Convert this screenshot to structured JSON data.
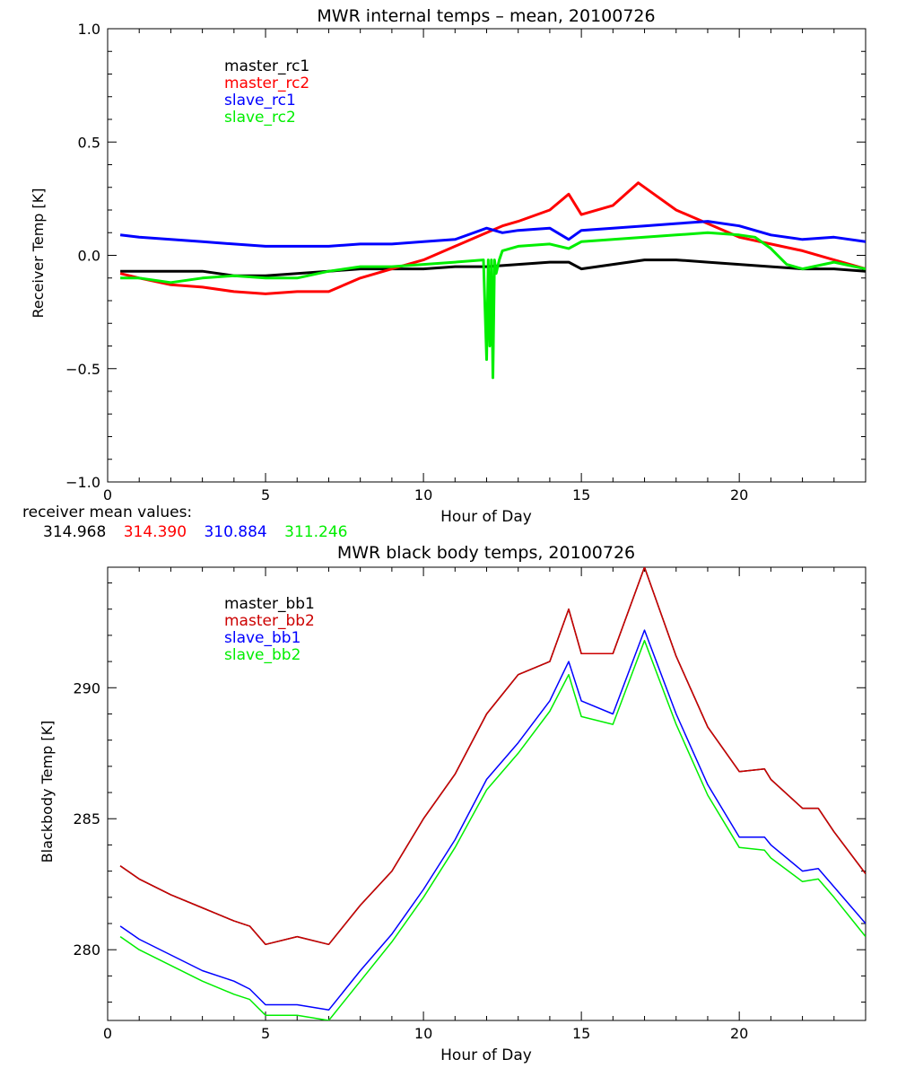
{
  "chart_data": [
    {
      "type": "line",
      "title": "MWR internal temps – mean, 20100726",
      "xlabel": "Hour of Day",
      "ylabel": "Receiver Temp [K]",
      "xlim": [
        0,
        24
      ],
      "ylim": [
        -1.0,
        1.0
      ],
      "xticks": [
        0,
        5,
        10,
        15,
        20
      ],
      "yticks": [
        -1.0,
        -0.5,
        0.0,
        0.5,
        1.0
      ],
      "ytick_labels": [
        "−1.0",
        "−0.5",
        "0.0",
        "0.5",
        "1.0"
      ],
      "grid": false,
      "legend_position": "top-left",
      "series": [
        {
          "name": "master_rc1",
          "color": "#000000",
          "x": [
            0.4,
            1,
            2,
            3,
            4,
            5,
            6,
            7,
            8,
            9,
            10,
            11,
            12,
            13,
            14,
            14.6,
            15,
            16,
            17,
            18,
            19,
            20,
            21,
            22,
            23,
            24
          ],
          "y": [
            -0.07,
            -0.07,
            -0.07,
            -0.07,
            -0.09,
            -0.09,
            -0.08,
            -0.07,
            -0.06,
            -0.06,
            -0.06,
            -0.05,
            -0.05,
            -0.04,
            -0.03,
            -0.03,
            -0.06,
            -0.04,
            -0.02,
            -0.02,
            -0.03,
            -0.04,
            -0.05,
            -0.06,
            -0.06,
            -0.07
          ]
        },
        {
          "name": "master_rc2",
          "color": "#ff0000",
          "x": [
            0.4,
            1,
            2,
            3,
            4,
            5,
            6,
            7,
            8,
            9,
            10,
            11,
            12,
            12.5,
            13,
            14,
            14.6,
            15,
            16,
            16.8,
            17.2,
            18,
            19,
            20,
            21,
            22,
            23,
            24
          ],
          "y": [
            -0.08,
            -0.1,
            -0.13,
            -0.14,
            -0.16,
            -0.17,
            -0.16,
            -0.16,
            -0.1,
            -0.06,
            -0.02,
            0.04,
            0.1,
            0.13,
            0.15,
            0.2,
            0.27,
            0.18,
            0.22,
            0.32,
            0.28,
            0.2,
            0.14,
            0.08,
            0.05,
            0.02,
            -0.02,
            -0.06
          ]
        },
        {
          "name": "slave_rc1",
          "color": "#0000ff",
          "x": [
            0.4,
            1,
            2,
            3,
            4,
            5,
            6,
            7,
            8,
            9,
            10,
            11,
            12,
            12.5,
            13,
            14,
            14.6,
            15,
            16,
            17,
            18,
            19,
            20,
            21,
            22,
            23,
            24
          ],
          "y": [
            0.09,
            0.08,
            0.07,
            0.06,
            0.05,
            0.04,
            0.04,
            0.04,
            0.05,
            0.05,
            0.06,
            0.07,
            0.12,
            0.1,
            0.11,
            0.12,
            0.07,
            0.11,
            0.12,
            0.13,
            0.14,
            0.15,
            0.13,
            0.09,
            0.07,
            0.08,
            0.06
          ]
        },
        {
          "name": "slave_rc2",
          "color": "#00ee00",
          "x": [
            0.4,
            1,
            2,
            3,
            4,
            5,
            6,
            7,
            8,
            9,
            10,
            11,
            11.9,
            12.0,
            12.05,
            12.1,
            12.15,
            12.2,
            12.25,
            12.3,
            12.4,
            12.5,
            13,
            14,
            14.6,
            15,
            16,
            17,
            18,
            19,
            20,
            20.5,
            21,
            21.5,
            22,
            23,
            24
          ],
          "y": [
            -0.1,
            -0.1,
            -0.12,
            -0.1,
            -0.09,
            -0.1,
            -0.1,
            -0.07,
            -0.05,
            -0.05,
            -0.04,
            -0.03,
            -0.02,
            -0.46,
            -0.02,
            -0.4,
            -0.02,
            -0.54,
            -0.02,
            -0.08,
            -0.02,
            0.02,
            0.04,
            0.05,
            0.03,
            0.06,
            0.07,
            0.08,
            0.09,
            0.1,
            0.09,
            0.08,
            0.03,
            -0.04,
            -0.06,
            -0.03,
            -0.06
          ]
        }
      ],
      "mean_values_caption": "receiver mean values:",
      "mean_values": [
        {
          "text": "314.968",
          "color": "#000000"
        },
        {
          "text": "314.390",
          "color": "#ff0000"
        },
        {
          "text": "310.884",
          "color": "#0000ff"
        },
        {
          "text": "311.246",
          "color": "#00ee00"
        }
      ]
    },
    {
      "type": "line",
      "title": "MWR black body temps, 20100726",
      "xlabel": "Hour of Day",
      "ylabel": "Blackbody Temp [K]",
      "xlim": [
        0,
        24
      ],
      "ylim": [
        277.3,
        294.6
      ],
      "xticks": [
        0,
        5,
        10,
        15,
        20
      ],
      "yticks": [
        280,
        285,
        290
      ],
      "grid": false,
      "legend_position": "top-left",
      "series": [
        {
          "name": "master_bb1",
          "color": "#000000",
          "x": [
            0.4,
            1,
            2,
            3,
            4,
            4.5,
            5,
            6,
            7,
            8,
            9,
            10,
            11,
            12,
            13,
            14,
            14.6,
            15,
            16,
            17,
            18,
            19,
            20,
            20.8,
            21,
            22,
            22.5,
            23,
            24
          ],
          "y": [
            283.2,
            282.7,
            282.1,
            281.6,
            281.1,
            280.9,
            280.2,
            280.5,
            280.2,
            281.7,
            283.0,
            285.0,
            286.7,
            289.0,
            290.5,
            291.0,
            293.0,
            291.3,
            291.3,
            294.6,
            291.2,
            288.5,
            286.8,
            286.9,
            286.5,
            285.4,
            285.4,
            284.5,
            282.9
          ]
        },
        {
          "name": "master_bb2",
          "color": "#cc0000",
          "x": [
            0.4,
            1,
            2,
            3,
            4,
            4.5,
            5,
            6,
            7,
            8,
            9,
            10,
            11,
            12,
            13,
            14,
            14.6,
            15,
            16,
            17,
            18,
            19,
            20,
            20.8,
            21,
            22,
            22.5,
            23,
            24
          ],
          "y": [
            283.2,
            282.7,
            282.1,
            281.6,
            281.1,
            280.9,
            280.2,
            280.5,
            280.2,
            281.7,
            283.0,
            285.0,
            286.7,
            289.0,
            290.5,
            291.0,
            293.0,
            291.3,
            291.3,
            294.6,
            291.2,
            288.5,
            286.8,
            286.9,
            286.5,
            285.4,
            285.4,
            284.5,
            282.9
          ]
        },
        {
          "name": "slave_bb1",
          "color": "#0000ff",
          "x": [
            0.4,
            1,
            2,
            3,
            4,
            4.5,
            5,
            6,
            7,
            8,
            9,
            10,
            11,
            12,
            13,
            14,
            14.6,
            15,
            16,
            17,
            18,
            19,
            20,
            20.8,
            21,
            22,
            22.5,
            23,
            24
          ],
          "y": [
            280.9,
            280.4,
            279.8,
            279.2,
            278.8,
            278.5,
            277.9,
            277.9,
            277.7,
            279.2,
            280.6,
            282.3,
            284.2,
            286.5,
            287.9,
            289.5,
            291.0,
            289.5,
            289.0,
            292.2,
            289.0,
            286.3,
            284.3,
            284.3,
            284.0,
            283.0,
            283.1,
            282.4,
            281.0
          ]
        },
        {
          "name": "slave_bb2",
          "color": "#00ee00",
          "x": [
            0.4,
            1,
            2,
            3,
            4,
            4.5,
            5,
            6,
            7,
            8,
            9,
            10,
            11,
            12,
            13,
            14,
            14.6,
            15,
            16,
            17,
            18,
            19,
            20,
            20.8,
            21,
            22,
            22.5,
            23,
            24
          ],
          "y": [
            280.5,
            280.0,
            279.4,
            278.8,
            278.3,
            278.1,
            277.5,
            277.5,
            277.3,
            278.8,
            280.3,
            282.0,
            283.9,
            286.1,
            287.5,
            289.1,
            290.5,
            288.9,
            288.6,
            291.8,
            288.6,
            285.9,
            283.9,
            283.8,
            283.5,
            282.6,
            282.7,
            282.0,
            280.5
          ]
        }
      ]
    }
  ]
}
